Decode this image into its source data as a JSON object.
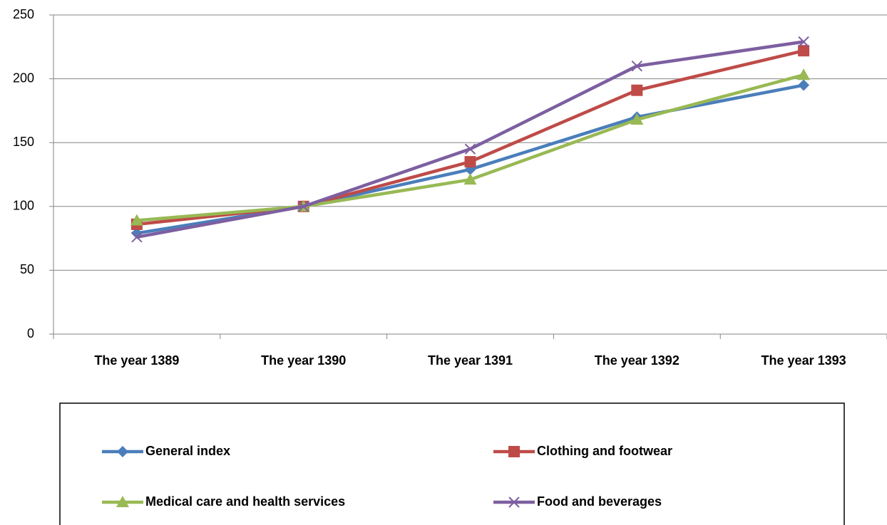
{
  "chart_data": {
    "type": "line",
    "categories": [
      "The year 1389",
      "The year 1390",
      "The year 1391",
      "The year 1392",
      "The year 1393"
    ],
    "series": [
      {
        "name": "General index",
        "color": "#4a7ebb",
        "marker": "diamond",
        "values": [
          79,
          100,
          129,
          170,
          195
        ]
      },
      {
        "name": "Clothing and footwear",
        "color": "#be4b48",
        "marker": "square",
        "values": [
          86,
          100,
          135,
          191,
          222
        ]
      },
      {
        "name": "Medical care and health services",
        "color": "#98b954",
        "marker": "triangle",
        "values": [
          89,
          100,
          121,
          168,
          203
        ]
      },
      {
        "name": "Food and beverages",
        "color": "#7d5fa0",
        "marker": "x",
        "values": [
          76,
          100,
          145,
          210,
          229
        ]
      }
    ],
    "ylim": [
      0,
      250
    ],
    "yticks": [
      0,
      50,
      100,
      150,
      200,
      250
    ],
    "grid": true,
    "legend": "bottom"
  }
}
